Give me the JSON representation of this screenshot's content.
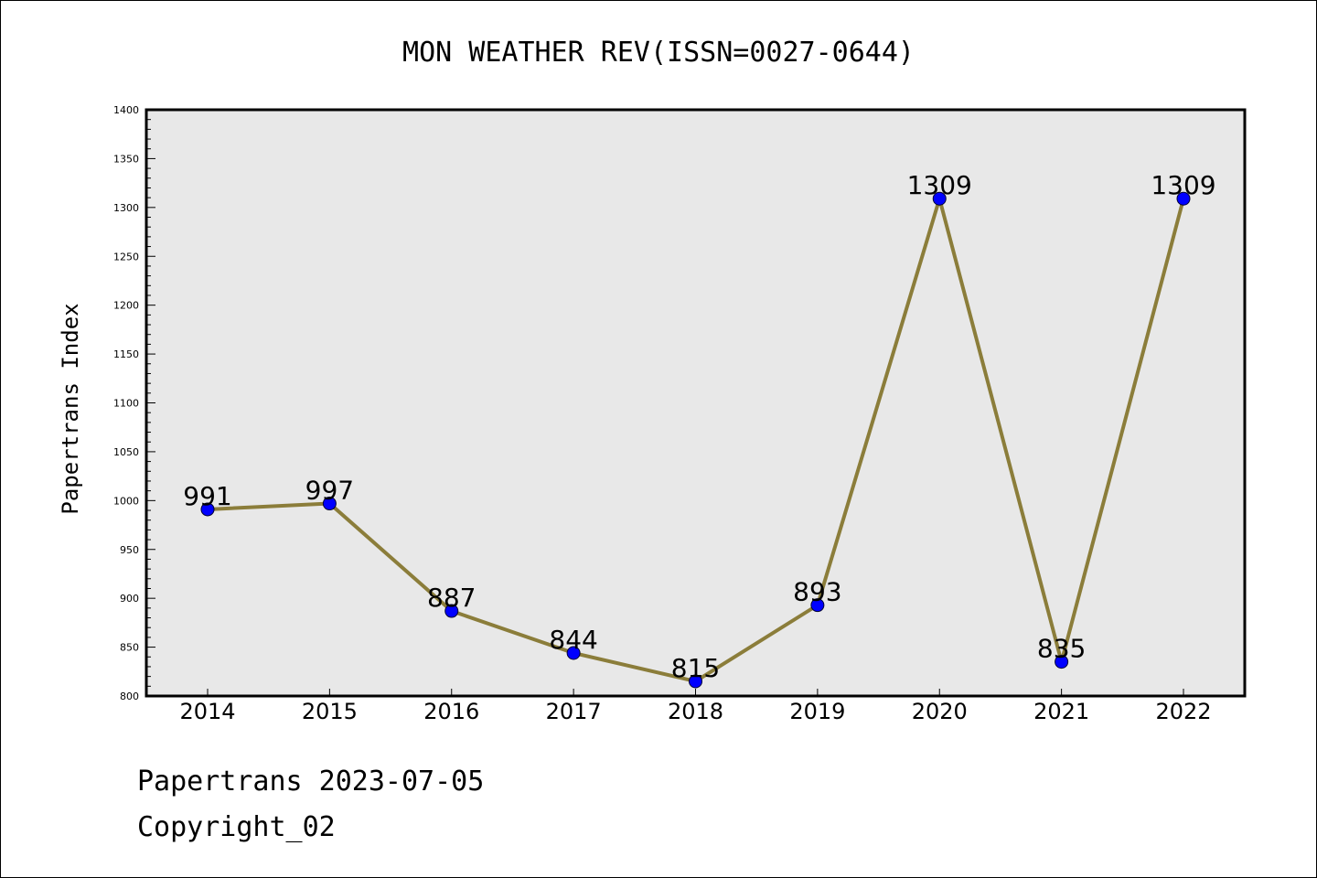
{
  "chart_data": {
    "type": "line",
    "title": "MON WEATHER REV(ISSN=0027-0644)",
    "xlabel": "",
    "ylabel": "Papertrans Index",
    "categories": [
      "2014",
      "2015",
      "2016",
      "2017",
      "2018",
      "2019",
      "2020",
      "2021",
      "2022"
    ],
    "series": [
      {
        "values": [
          991,
          997,
          887,
          844,
          815,
          893,
          1309,
          835,
          1309
        ]
      }
    ],
    "data_labels": [
      "991",
      "997",
      "887",
      "844",
      "815",
      "893",
      "1309",
      "835",
      "1309"
    ],
    "ylim": [
      800,
      1400
    ],
    "yticks": [
      800,
      850,
      900,
      950,
      1000,
      1050,
      1100,
      1150,
      1200,
      1250,
      1300,
      1350,
      1400
    ],
    "grid": false,
    "legend": "none",
    "colors": {
      "line": "#8b7d3a",
      "marker": "#0000ff",
      "plot_background": "#e8e8e8"
    }
  },
  "footer": {
    "line1": "Papertrans 2023-07-05",
    "line2": "Copyright_02"
  }
}
